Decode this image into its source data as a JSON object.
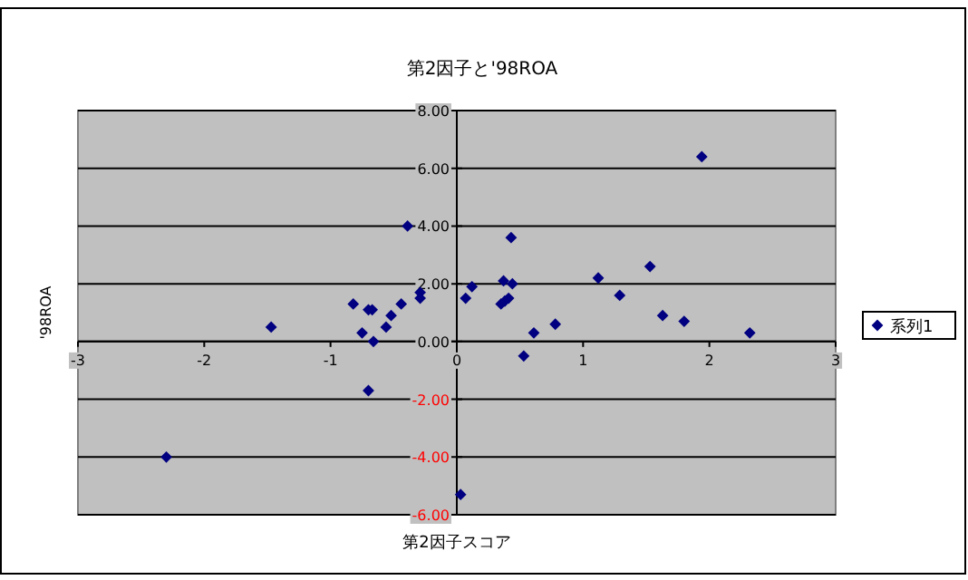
{
  "chart_data": {
    "type": "scatter",
    "title": "第2因子と'98ROA",
    "xlabel": "第2因子スコア",
    "ylabel": "'98ROA",
    "xlim": [
      -3,
      3
    ],
    "xticks": [
      -3,
      -2,
      -1,
      0,
      1,
      2,
      3
    ],
    "ylim": [
      -6,
      8
    ],
    "yticks": [
      {
        "value": -6,
        "label": "-6.00"
      },
      {
        "value": -4,
        "label": "-4.00"
      },
      {
        "value": -2,
        "label": "-2.00"
      },
      {
        "value": 0,
        "label": "0.00"
      },
      {
        "value": 2,
        "label": "2.00"
      },
      {
        "value": 4,
        "label": "4.00"
      },
      {
        "value": 6,
        "label": "6.00"
      },
      {
        "value": 8,
        "label": "8.00"
      }
    ],
    "grid": "y",
    "legend": "right",
    "marker": "diamond",
    "series": [
      {
        "name": "系列1",
        "color": "#000080",
        "x": [
          -2.3,
          -1.47,
          -0.39,
          -0.82,
          -0.7,
          -0.67,
          -0.75,
          -0.66,
          -0.7,
          -0.56,
          -0.52,
          -0.44,
          -0.29,
          -0.29,
          0.03,
          0.07,
          0.12,
          1.94,
          0.43,
          0.37,
          0.44,
          0.35,
          0.38,
          0.41,
          0.53,
          0.61,
          0.78,
          1.12,
          1.29,
          1.53,
          1.63,
          1.8,
          2.32
        ],
        "values": [
          -4.0,
          0.5,
          4.0,
          1.3,
          1.1,
          1.1,
          0.3,
          0.0,
          -1.7,
          0.5,
          0.9,
          1.3,
          1.7,
          1.5,
          -5.3,
          1.5,
          1.9,
          6.4,
          3.6,
          2.1,
          2.0,
          1.3,
          1.4,
          1.5,
          -0.5,
          0.3,
          0.6,
          2.2,
          1.6,
          2.6,
          0.9,
          0.7,
          0.3
        ]
      }
    ]
  }
}
